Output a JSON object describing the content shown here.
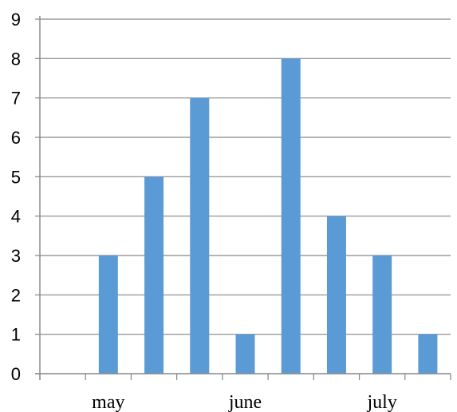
{
  "chart_data": {
    "type": "bar",
    "x_group_labels": [
      "may",
      "june",
      "july"
    ],
    "values": [
      0,
      3,
      5,
      7,
      1,
      8,
      4,
      3,
      1
    ],
    "y_ticks": [
      "0",
      "1",
      "2",
      "3",
      "4",
      "5",
      "6",
      "7",
      "8",
      "9"
    ],
    "ylim": [
      0,
      9
    ],
    "title": "",
    "xlabel": "",
    "ylabel": "",
    "grid": "horizontal",
    "legend": "none",
    "colors": {
      "bar": "#5b9bd5",
      "grid": "#868686",
      "axis": "#868686"
    }
  }
}
